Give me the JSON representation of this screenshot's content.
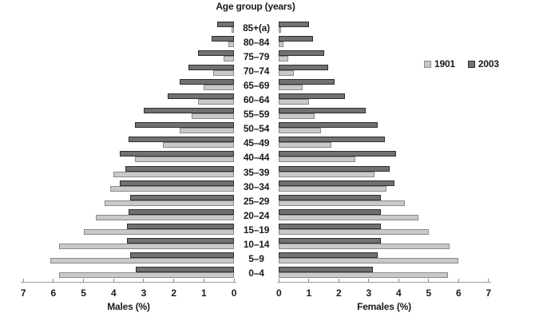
{
  "title": "Age group (years)",
  "legend": {
    "items": [
      {
        "label": "1901",
        "color": "#c9c9c9",
        "border": "#8a8a8a"
      },
      {
        "label": "2003",
        "color": "#717171",
        "border": "#2e2e2e"
      }
    ]
  },
  "axes": {
    "male": {
      "label": "Males (%)",
      "ticks": [
        "7",
        "6",
        "5",
        "4",
        "3",
        "2",
        "1",
        "0"
      ]
    },
    "female": {
      "label": "Females (%)",
      "ticks": [
        "0",
        "1",
        "2",
        "3",
        "4",
        "5",
        "6",
        "7"
      ]
    },
    "max_pct": 7
  },
  "chart_data": {
    "type": "bar",
    "subtype": "population-pyramid",
    "title": "Age group (years)",
    "xlabel_left": "Males (%)",
    "xlabel_right": "Females (%)",
    "x_range_pct": [
      0,
      7
    ],
    "grid": false,
    "legend_position": "right",
    "categories_top_to_bottom": [
      "85+(a)",
      "80–84",
      "75–79",
      "70–74",
      "65–69",
      "60–64",
      "55–59",
      "50–54",
      "45–49",
      "40–44",
      "35–39",
      "30–34",
      "25–29",
      "20–24",
      "15–19",
      "10–14",
      "5–9",
      "0–4"
    ],
    "series": [
      {
        "name": "1901",
        "side": "males",
        "values": [
          0.08,
          0.18,
          0.35,
          0.7,
          1.0,
          1.2,
          1.4,
          1.8,
          2.35,
          3.3,
          4.0,
          4.1,
          4.3,
          4.6,
          5.0,
          5.8,
          6.1,
          5.8
        ]
      },
      {
        "name": "2003",
        "side": "males",
        "values": [
          0.55,
          0.75,
          1.2,
          1.5,
          1.8,
          2.2,
          3.0,
          3.3,
          3.5,
          3.8,
          3.6,
          3.8,
          3.45,
          3.5,
          3.55,
          3.55,
          3.45,
          3.25
        ]
      },
      {
        "name": "1901",
        "side": "females",
        "values": [
          0.08,
          0.15,
          0.3,
          0.5,
          0.8,
          1.0,
          1.2,
          1.4,
          1.75,
          2.55,
          3.2,
          3.6,
          4.2,
          4.65,
          5.0,
          5.7,
          6.0,
          5.65
        ]
      },
      {
        "name": "2003",
        "side": "females",
        "values": [
          1.0,
          1.15,
          1.5,
          1.65,
          1.85,
          2.2,
          2.9,
          3.3,
          3.55,
          3.9,
          3.7,
          3.85,
          3.4,
          3.4,
          3.4,
          3.4,
          3.3,
          3.15
        ]
      }
    ]
  }
}
